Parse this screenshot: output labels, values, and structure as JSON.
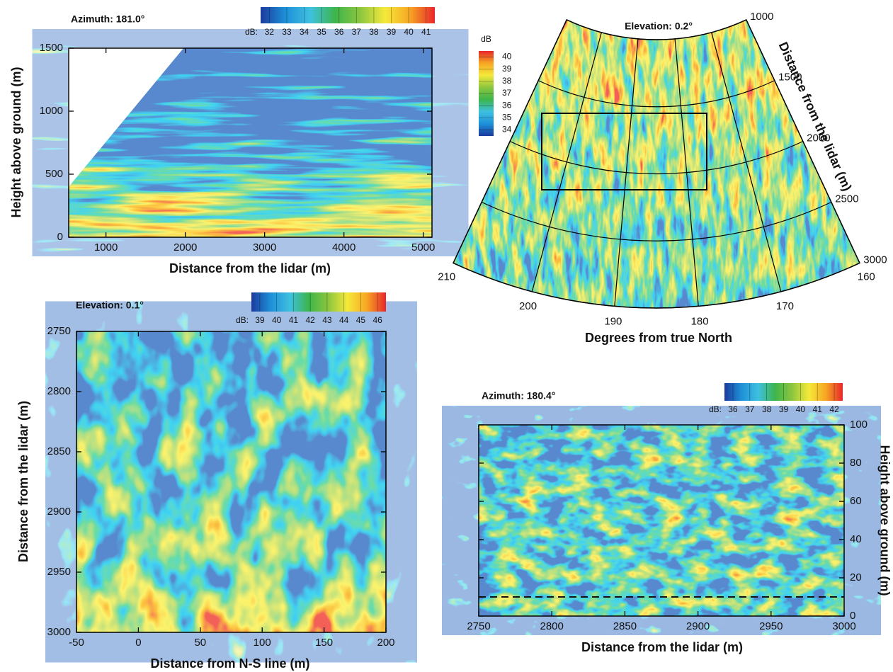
{
  "chart_data": [
    {
      "type": "heatmap",
      "title": "Azimuth: 181.0°",
      "xlabel": "Distance from the lidar (m)",
      "ylabel": "Height above ground (m)",
      "xlim": [
        530,
        5110
      ],
      "xticks": [
        1000,
        2000,
        3000,
        4000,
        5000
      ],
      "ylim": [
        0,
        1500
      ],
      "yticks": [
        0,
        500,
        1000,
        1500
      ],
      "y_axis_side": "left",
      "colorbar": {
        "label": "dB:",
        "orientation": "horizontal",
        "ticks": [
          32,
          33,
          34,
          35,
          36,
          37,
          38,
          39,
          40,
          41
        ],
        "colors": [
          "#1a3a9e",
          "#1e90d8",
          "#3ec0e0",
          "#3db54a",
          "#8cc63f",
          "#f5e93a",
          "#f6a623",
          "#e8262a"
        ]
      }
    },
    {
      "type": "sector-heatmap",
      "title": "Elevation:  0.2°",
      "theta_label": "Degrees from true North",
      "r_label": "Distance from the lidar (m)",
      "thetalim": [
        210,
        160
      ],
      "thetaticks": [
        210,
        200,
        190,
        180,
        170,
        160
      ],
      "rlim": [
        1000,
        3000
      ],
      "rticks": [
        1000,
        1500,
        2000,
        2500,
        3000
      ],
      "colorbar": {
        "label": "dB",
        "orientation": "vertical",
        "ticks": [
          34,
          35,
          36,
          37,
          38,
          39,
          40
        ],
        "colors": [
          "#1a3a9e",
          "#1e90d8",
          "#3ec0e0",
          "#3db54a",
          "#8cc63f",
          "#f5e93a",
          "#f6a623",
          "#e8262a"
        ]
      }
    },
    {
      "type": "heatmap",
      "title": "Elevation:  0.1°",
      "xlabel": "Distance from N-S line (m)",
      "ylabel": "Distance from the lidar (m)",
      "xlim": [
        -50,
        200
      ],
      "xticks": [
        -50,
        0,
        50,
        100,
        150,
        200
      ],
      "ylim": [
        3000,
        2750
      ],
      "yticks": [
        2750,
        2800,
        2850,
        2900,
        2950,
        3000
      ],
      "y_axis_side": "left",
      "colorbar": {
        "label": "dB:",
        "orientation": "horizontal",
        "ticks": [
          39,
          40,
          41,
          42,
          43,
          44,
          45,
          46
        ],
        "colors": [
          "#1a3a9e",
          "#1e90d8",
          "#3ec0e0",
          "#3db54a",
          "#8cc63f",
          "#f5e93a",
          "#f6a623",
          "#e8262a"
        ]
      }
    },
    {
      "type": "heatmap",
      "title": "Azimuth: 180.4°",
      "xlabel": "Distance from the lidar (m)",
      "ylabel": "Height above ground (m)",
      "xlim": [
        2750,
        3000
      ],
      "xticks": [
        2750,
        2800,
        2850,
        2900,
        2950,
        3000
      ],
      "ylim": [
        0,
        100
      ],
      "yticks": [
        0,
        20,
        40,
        60,
        80,
        100
      ],
      "y_axis_side": "right",
      "hline": 10,
      "colorbar": {
        "label": "dB:",
        "orientation": "horizontal",
        "ticks": [
          36,
          37,
          38,
          39,
          40,
          41,
          42
        ],
        "colors": [
          "#1a3a9e",
          "#1e90d8",
          "#3ec0e0",
          "#3db54a",
          "#8cc63f",
          "#f5e93a",
          "#f6a623",
          "#e8262a"
        ]
      }
    }
  ]
}
